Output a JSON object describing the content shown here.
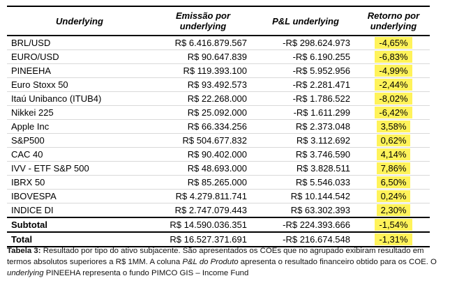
{
  "headers": {
    "underlying": "Underlying",
    "emissao": "Emissão por underlying",
    "pl": "P&L underlying",
    "retorno": "Retorno por underlying"
  },
  "rows": [
    {
      "name": "BRL/USD",
      "emissao": "R$ 6.416.879.567",
      "pl": "-R$ 298.624.973",
      "retorno": "-4,65%"
    },
    {
      "name": "EURO/USD",
      "emissao": "R$ 90.647.839",
      "pl": "-R$ 6.190.255",
      "retorno": "-6,83%"
    },
    {
      "name": "PINEEHA",
      "emissao": "R$ 119.393.100",
      "pl": "-R$ 5.952.956",
      "retorno": "-4,99%"
    },
    {
      "name": "Euro Stoxx 50",
      "emissao": "R$ 93.492.573",
      "pl": "-R$ 2.281.471",
      "retorno": "-2,44%"
    },
    {
      "name": "Itaú Unibanco (ITUB4)",
      "emissao": "R$ 22.268.000",
      "pl": "-R$ 1.786.522",
      "retorno": "-8,02%"
    },
    {
      "name": "Nikkei 225",
      "emissao": "R$ 25.092.000",
      "pl": "-R$ 1.611.299",
      "retorno": "-6,42%"
    },
    {
      "name": "Apple Inc",
      "emissao": "R$ 66.334.256",
      "pl": "R$ 2.373.048",
      "retorno": "3,58%"
    },
    {
      "name": "S&P500",
      "emissao": "R$ 504.677.832",
      "pl": "R$ 3.112.692",
      "retorno": "0,62%"
    },
    {
      "name": "CAC 40",
      "emissao": "R$ 90.402.000",
      "pl": "R$ 3.746.590",
      "retorno": "4,14%"
    },
    {
      "name": "IVV - ETF S&P 500",
      "emissao": "R$ 48.693.000",
      "pl": "R$ 3.828.511",
      "retorno": "7,86%"
    },
    {
      "name": "IBRX 50",
      "emissao": "R$ 85.265.000",
      "pl": "R$ 5.546.033",
      "retorno": "6,50%"
    },
    {
      "name": "IBOVESPA",
      "emissao": "R$ 4.279.811.741",
      "pl": "R$ 10.144.542",
      "retorno": "0,24%"
    },
    {
      "name": "INDICE DI",
      "emissao": "R$ 2.747.079.443",
      "pl": "R$ 63.302.393",
      "retorno": "2,30%"
    }
  ],
  "subtotal": {
    "name": "Subtotal",
    "emissao": "R$ 14.590.036.351",
    "pl": "-R$ 224.393.666",
    "retorno": "-1,54%"
  },
  "total": {
    "name": "Total",
    "emissao": "R$ 16.527.371.691",
    "pl": "-R$ 216.674.548",
    "retorno": "-1,31%"
  },
  "caption": {
    "label": "Tabela 3:",
    "part1": " Resultado por tipo do ativo subjacente. São apresentados os COEs que no agrupado exibiram resultado em termos absolutos superiores a R$ 1MM. A coluna ",
    "italic1": "P&L do Produto",
    "part2": " apresenta o resultado financeiro obtido para os COE. O ",
    "italic2": "underlying",
    "part3": " PINEEHA representa o fundo PIMCO GIS – Income Fund"
  },
  "highlight_color": "#fff35a"
}
